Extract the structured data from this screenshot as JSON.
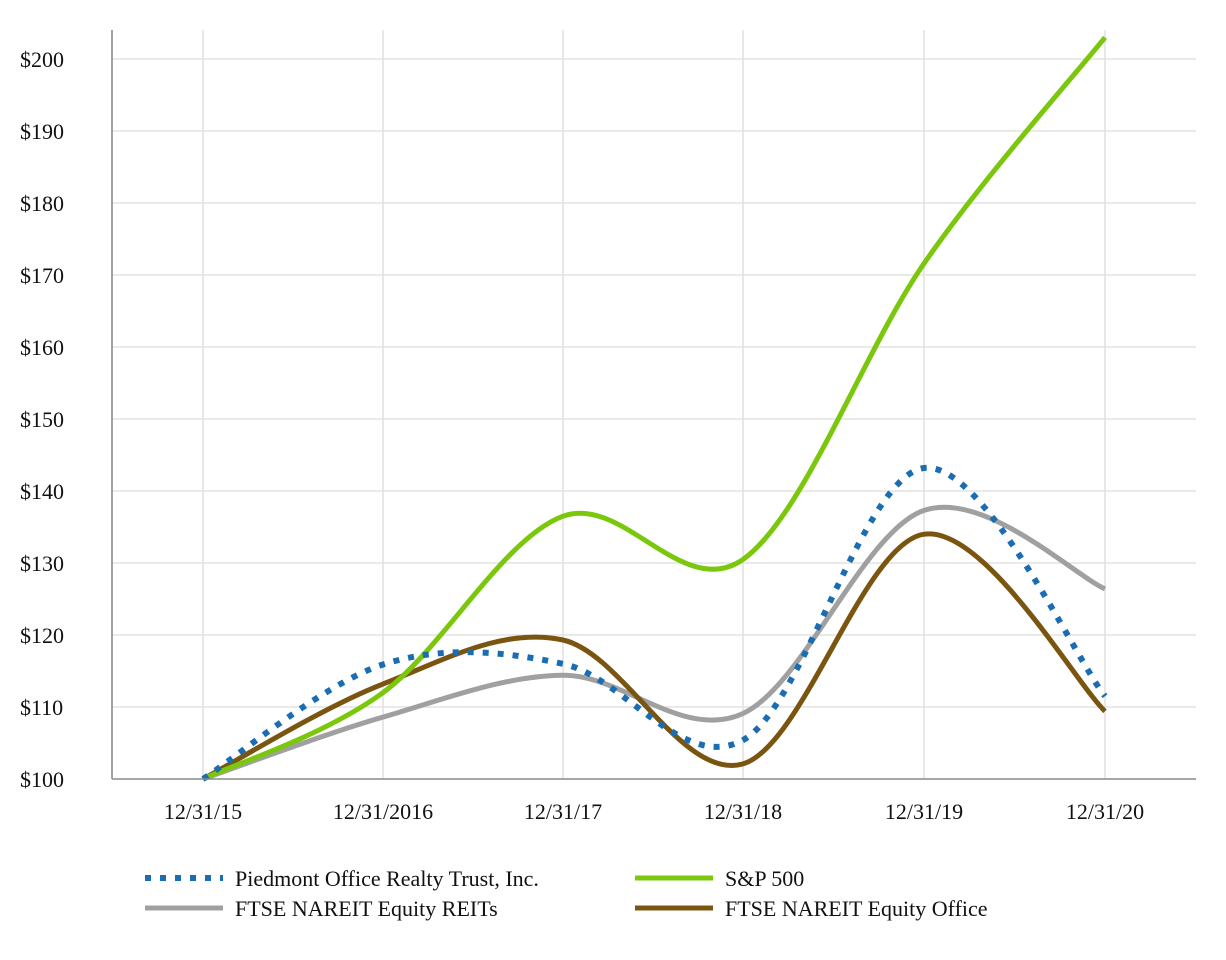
{
  "chart_data": {
    "type": "line",
    "title": "",
    "xlabel": "",
    "ylabel": "",
    "categories": [
      "12/31/15",
      "12/31/2016",
      "12/31/17",
      "12/31/18",
      "12/31/19",
      "12/31/20"
    ],
    "ylim": [
      100,
      203
    ],
    "y_ticks": [
      {
        "value": 100,
        "label": "$100"
      },
      {
        "value": 110,
        "label": "$110"
      },
      {
        "value": 120,
        "label": "$120"
      },
      {
        "value": 130,
        "label": "$130"
      },
      {
        "value": 140,
        "label": "$140"
      },
      {
        "value": 150,
        "label": "$150"
      },
      {
        "value": 160,
        "label": "$160"
      },
      {
        "value": 170,
        "label": "$170"
      },
      {
        "value": 180,
        "label": "$180"
      },
      {
        "value": 190,
        "label": "$190"
      },
      {
        "value": 200,
        "label": "$200"
      }
    ],
    "grid": true,
    "legend_position": "bottom",
    "series": [
      {
        "name": "Piedmont Office Realty Trust, Inc.",
        "values": [
          100,
          115.9,
          116.0,
          105.4,
          143.2,
          111.5
        ],
        "color": "#1a6db3",
        "style": "dotted"
      },
      {
        "name": "S&P 500",
        "values": [
          100,
          112.0,
          136.5,
          130.5,
          171.6,
          203.0
        ],
        "color": "#7ac70c",
        "style": "solid"
      },
      {
        "name": "FTSE NAREIT Equity REITs",
        "values": [
          100,
          108.6,
          114.4,
          109.1,
          137.3,
          126.4
        ],
        "color": "#a0a0a0",
        "style": "solid"
      },
      {
        "name": "FTSE NAREIT Equity Office",
        "values": [
          100,
          113.2,
          119.3,
          102.1,
          134.0,
          109.4
        ],
        "color": "#7a5510",
        "style": "solid"
      }
    ]
  }
}
